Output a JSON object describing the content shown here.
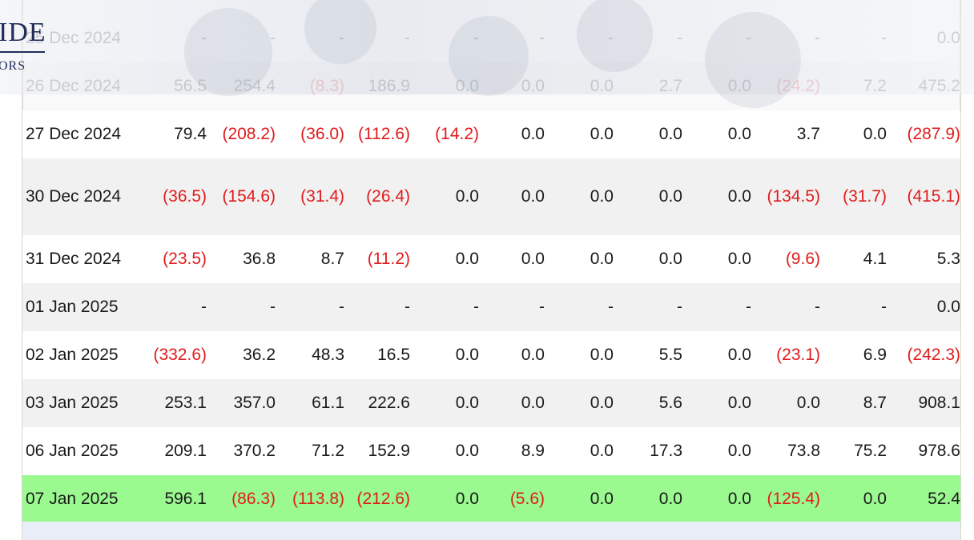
{
  "logo": {
    "word": "IDE",
    "sub": "ORS"
  },
  "colors": {
    "negative": "#e01b1b",
    "highlight_row": "#9af98f",
    "alt_row": "#f1f1f1"
  },
  "rows": [
    {
      "date": "25 Dec 2024",
      "cells": [
        "-",
        "-",
        "-",
        "-",
        "-",
        "-",
        "-",
        "-",
        "-",
        "-",
        "-",
        "0.0"
      ],
      "style": "faded white"
    },
    {
      "date": "26 Dec 2024",
      "cells": [
        "56.5",
        "254.4",
        "(8.3)",
        "186.9",
        "0.0",
        "0.0",
        "0.0",
        "2.7",
        "0.0",
        "(24.2)",
        "7.2",
        "475.2"
      ],
      "style": "faded alt"
    },
    {
      "date": "27 Dec 2024",
      "cells": [
        "79.4",
        "(208.2)",
        "(36.0)",
        "(112.6)",
        "(14.2)",
        "0.0",
        "0.0",
        "0.0",
        "0.0",
        "3.7",
        "0.0",
        "(287.9)"
      ],
      "style": "white"
    },
    {
      "date": "30 Dec 2024",
      "cells": [
        "(36.5)",
        "(154.6)",
        "(31.4)",
        "(26.4)",
        "0.0",
        "0.0",
        "0.0",
        "0.0",
        "0.0",
        "(134.5)",
        "(31.7)",
        "(415.1)"
      ],
      "style": "alt tall"
    },
    {
      "date": "31 Dec 2024",
      "cells": [
        "(23.5)",
        "36.8",
        "8.7",
        "(11.2)",
        "0.0",
        "0.0",
        "0.0",
        "0.0",
        "0.0",
        "(9.6)",
        "4.1",
        "5.3"
      ],
      "style": "white"
    },
    {
      "date": "01 Jan 2025",
      "cells": [
        "-",
        "-",
        "-",
        "-",
        "-",
        "-",
        "-",
        "-",
        "-",
        "-",
        "-",
        "0.0"
      ],
      "style": "alt"
    },
    {
      "date": "02 Jan 2025",
      "cells": [
        "(332.6)",
        "36.2",
        "48.3",
        "16.5",
        "0.0",
        "0.0",
        "0.0",
        "5.5",
        "0.0",
        "(23.1)",
        "6.9",
        "(242.3)"
      ],
      "style": "white"
    },
    {
      "date": "03 Jan 2025",
      "cells": [
        "253.1",
        "357.0",
        "61.1",
        "222.6",
        "0.0",
        "0.0",
        "0.0",
        "5.6",
        "0.0",
        "0.0",
        "8.7",
        "908.1"
      ],
      "style": "alt"
    },
    {
      "date": "06 Jan 2025",
      "cells": [
        "209.1",
        "370.2",
        "71.2",
        "152.9",
        "0.0",
        "8.9",
        "0.0",
        "17.3",
        "0.0",
        "73.8",
        "75.2",
        "978.6"
      ],
      "style": "white"
    },
    {
      "date": "07 Jan 2025",
      "cells": [
        "596.1",
        "(86.3)",
        "(113.8)",
        "(212.6)",
        "0.0",
        "(5.6)",
        "0.0",
        "0.0",
        "0.0",
        "(125.4)",
        "0.0",
        "52.4"
      ],
      "style": "highlight"
    }
  ]
}
